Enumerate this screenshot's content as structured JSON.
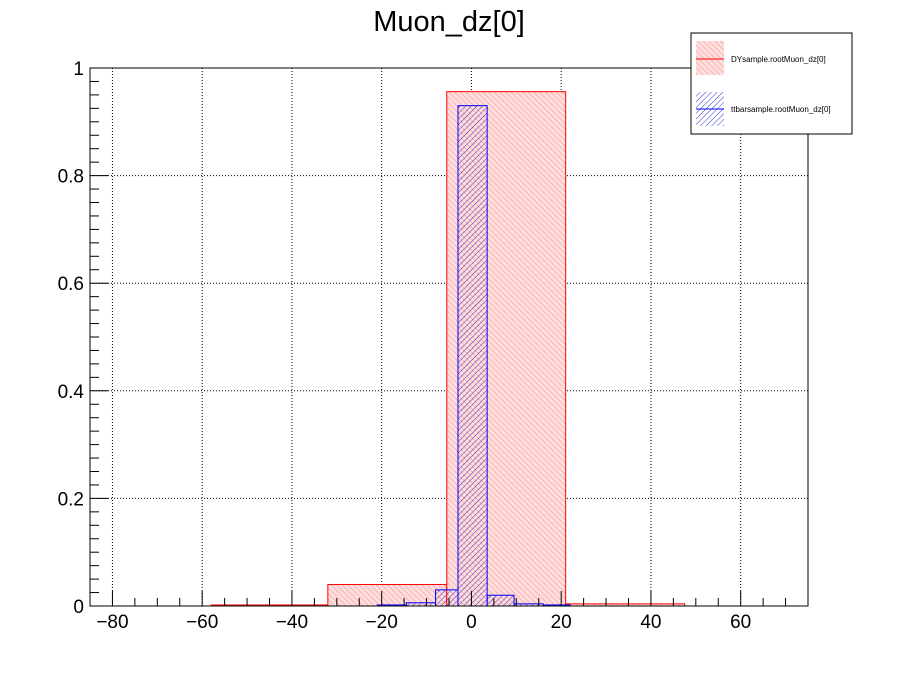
{
  "chart_data": {
    "type": "bar",
    "title": "Muon_dz[0]",
    "xlabel": "",
    "ylabel": "",
    "xlim": [
      -85,
      75
    ],
    "ylim": [
      0,
      1.0
    ],
    "x_ticks": [
      -80,
      -60,
      -40,
      -20,
      0,
      20,
      40,
      60
    ],
    "y_ticks": [
      0,
      0.2,
      0.4,
      0.6,
      0.8,
      1
    ],
    "x_tick_labels": [
      "−80",
      "−60",
      "−40",
      "−20",
      "0",
      "20",
      "40",
      "60"
    ],
    "y_tick_labels": [
      "0",
      "0.2",
      "0.4",
      "0.6",
      "0.8",
      "1"
    ],
    "grid": true,
    "legend_position": "top-right",
    "series": [
      {
        "name": "DYsample.rootMuon_dz[0]",
        "line_color": "#ff0000",
        "fill_color": "#ffb3b3",
        "fill_style": "solid-hatched",
        "bins": [
          {
            "x0": -58,
            "x1": -32,
            "value": 0.002
          },
          {
            "x0": -32,
            "x1": -5.5,
            "value": 0.04
          },
          {
            "x0": -5.5,
            "x1": 21,
            "value": 0.956
          },
          {
            "x0": 21,
            "x1": 47.5,
            "value": 0.004
          }
        ]
      },
      {
        "name": "ttbarsample.rootMuon_dz[0]",
        "line_color": "#0000ff",
        "fill_color": "#3333cc",
        "fill_style": "hatched",
        "bins": [
          {
            "x0": -21,
            "x1": -14.5,
            "value": 0.002
          },
          {
            "x0": -14.5,
            "x1": -8,
            "value": 0.006
          },
          {
            "x0": -8,
            "x1": -3,
            "value": 0.03
          },
          {
            "x0": -3,
            "x1": 3.5,
            "value": 0.93
          },
          {
            "x0": 3.5,
            "x1": 9.5,
            "value": 0.02
          },
          {
            "x0": 9.5,
            "x1": 16,
            "value": 0.004
          },
          {
            "x0": 16,
            "x1": 22,
            "value": 0.002
          }
        ]
      }
    ]
  }
}
